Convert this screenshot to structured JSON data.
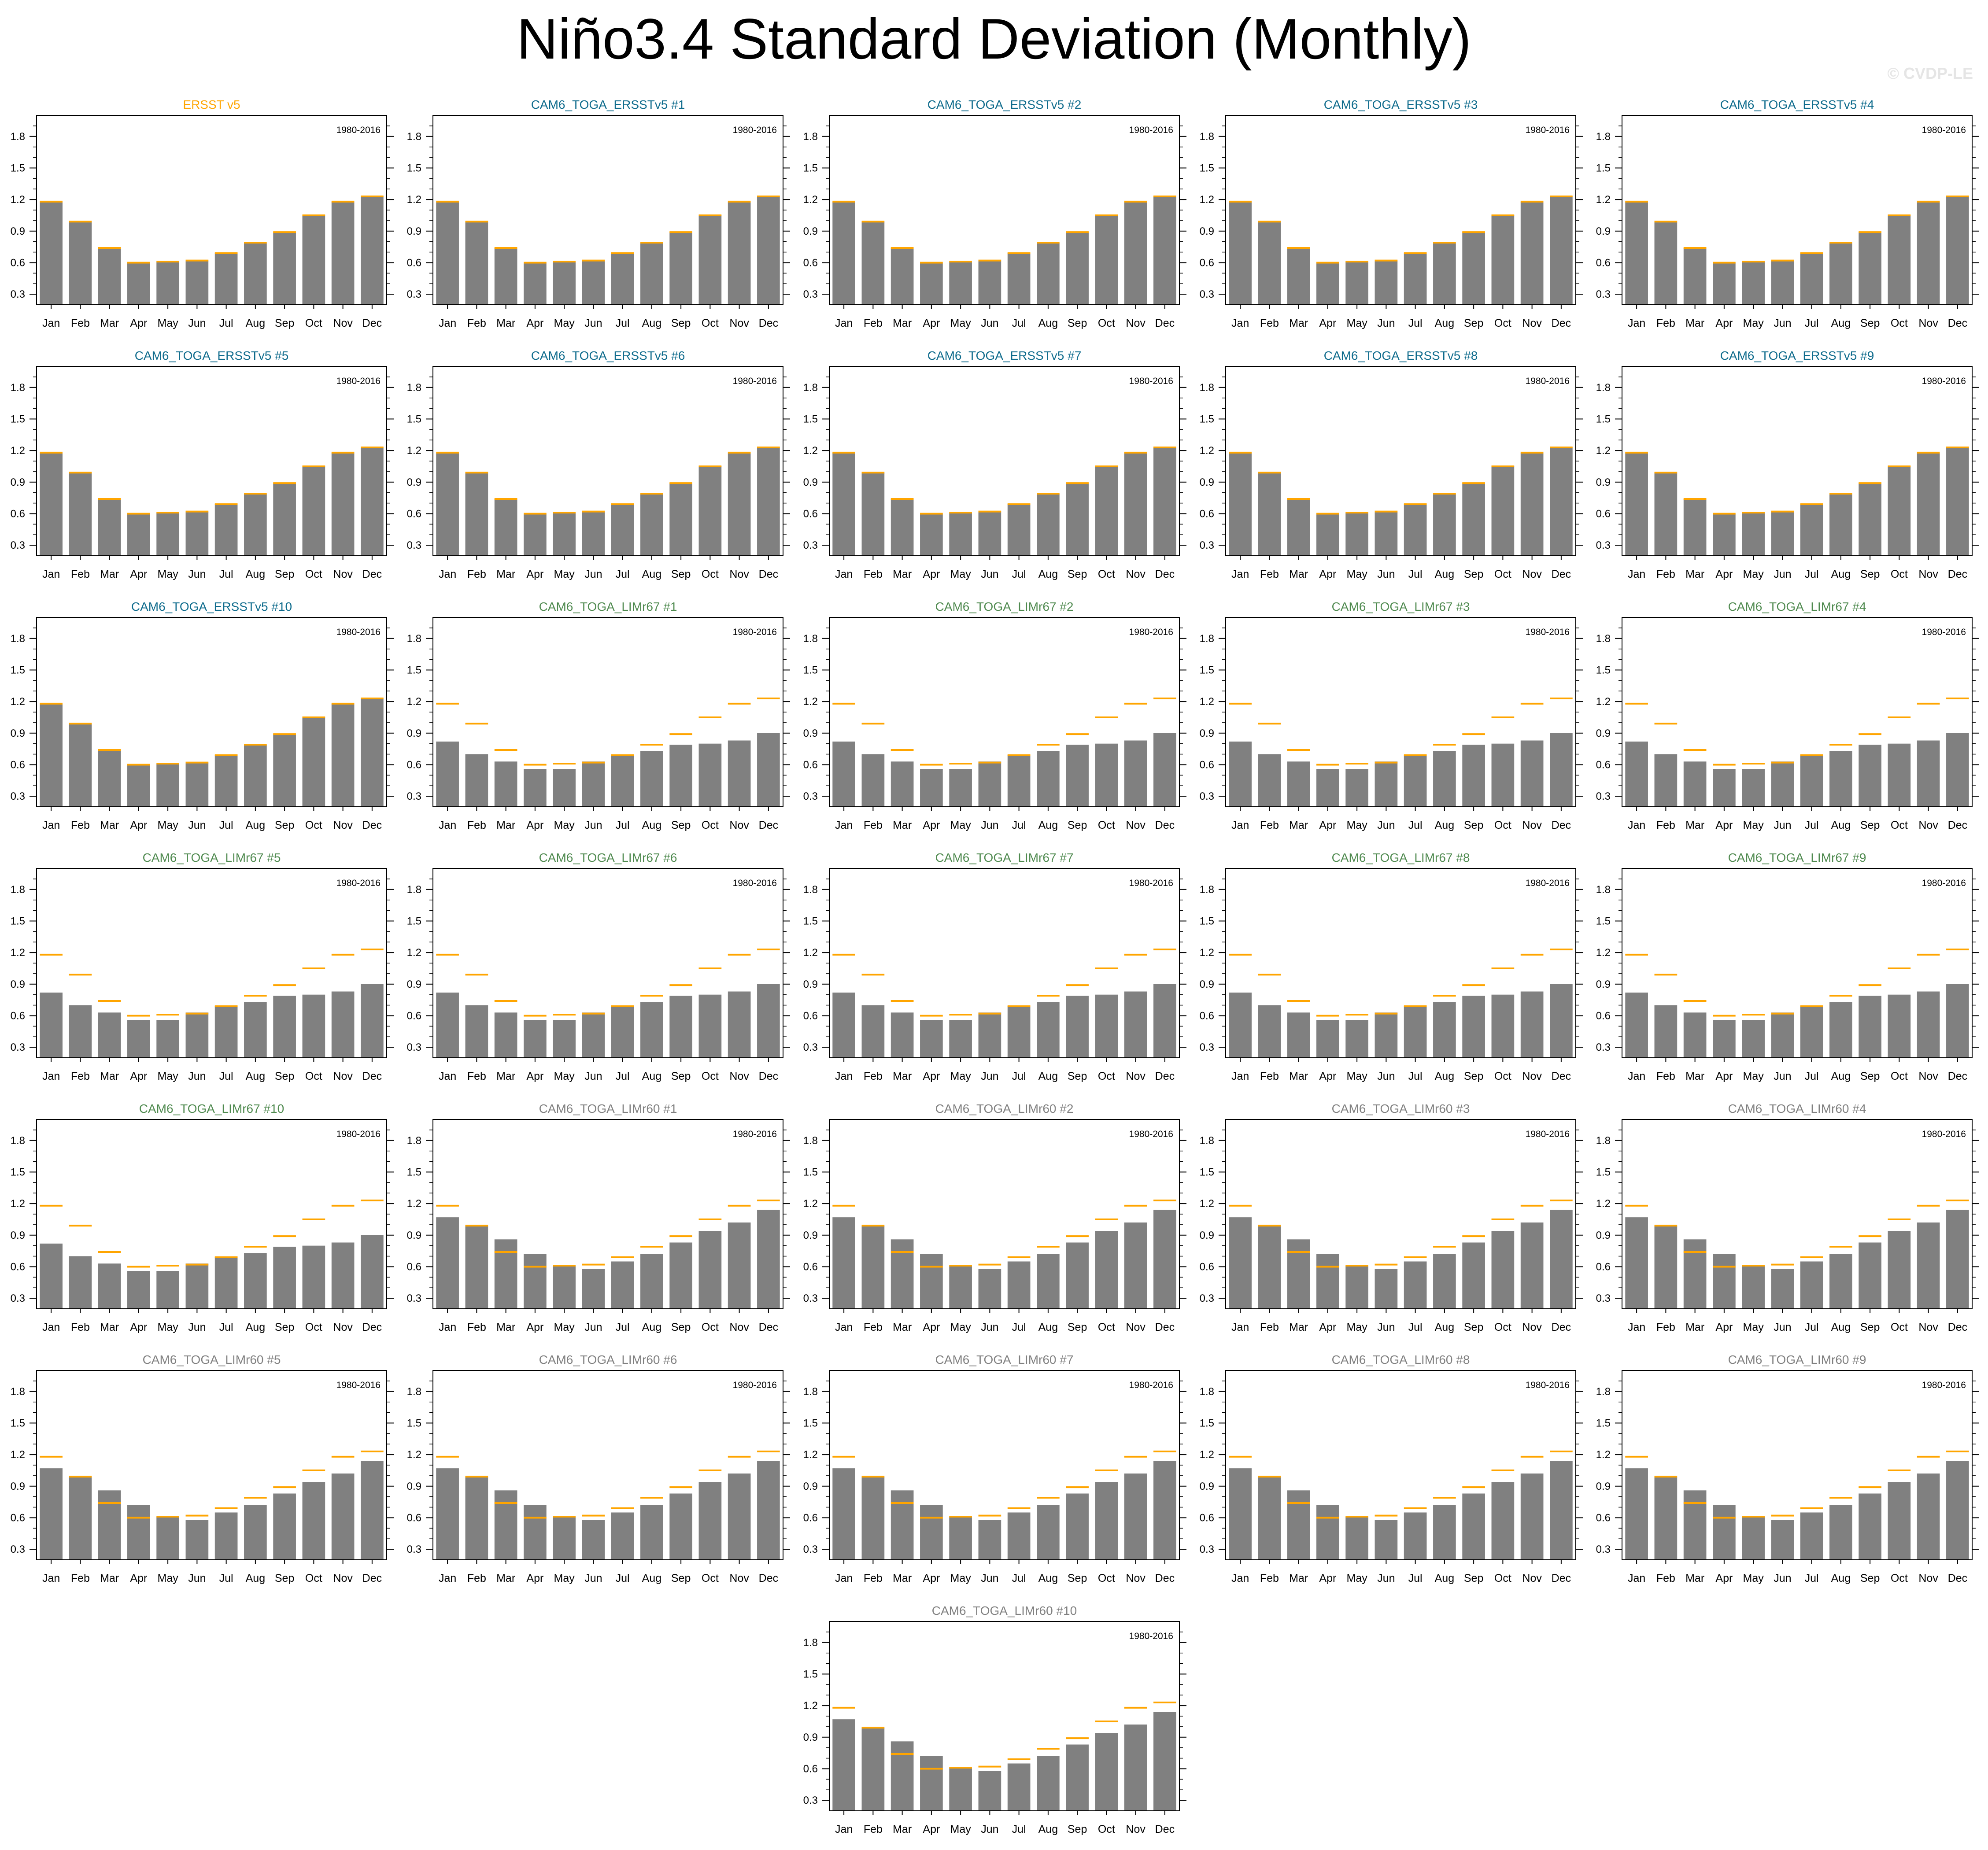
{
  "title": "Niño3.4 Standard Deviation (Monthly)",
  "copyright": "© CVDP-LE",
  "colors": {
    "bar": "#808080",
    "reference": "#ffa500",
    "title_obs": "#ffa500",
    "title_ersst": "#0e6b8c",
    "title_limr67": "#4f8a4f",
    "title_limr60": "#808080"
  },
  "chart_data": {
    "type": "bar",
    "categories": [
      "Jan",
      "Feb",
      "Mar",
      "Apr",
      "May",
      "Jun",
      "Jul",
      "Aug",
      "Sep",
      "Oct",
      "Nov",
      "Dec"
    ],
    "ylim": [
      0.2,
      2.0
    ],
    "yticks": [
      "0.3",
      "0.6",
      "0.9",
      "1.2",
      "1.5",
      "1.8"
    ],
    "period_label": "1980-2016",
    "reference_series": {
      "name": "ERSST v5",
      "values": [
        1.18,
        0.99,
        0.74,
        0.6,
        0.61,
        0.62,
        0.69,
        0.79,
        0.89,
        1.05,
        1.18,
        1.23
      ]
    },
    "series": [
      {
        "name": "ERSST v5",
        "group": "obs",
        "values": [
          1.18,
          0.99,
          0.74,
          0.6,
          0.61,
          0.62,
          0.69,
          0.79,
          0.89,
          1.05,
          1.18,
          1.23
        ]
      },
      {
        "name": "CAM6_TOGA_ERSSTv5 #1",
        "group": "ersst",
        "values": [
          1.18,
          0.99,
          0.74,
          0.6,
          0.61,
          0.62,
          0.69,
          0.79,
          0.89,
          1.05,
          1.18,
          1.23
        ]
      },
      {
        "name": "CAM6_TOGA_ERSSTv5 #2",
        "group": "ersst",
        "values": [
          1.18,
          0.99,
          0.74,
          0.6,
          0.61,
          0.62,
          0.69,
          0.79,
          0.89,
          1.05,
          1.18,
          1.23
        ]
      },
      {
        "name": "CAM6_TOGA_ERSSTv5 #3",
        "group": "ersst",
        "values": [
          1.18,
          0.99,
          0.74,
          0.6,
          0.61,
          0.62,
          0.69,
          0.79,
          0.89,
          1.05,
          1.18,
          1.23
        ]
      },
      {
        "name": "CAM6_TOGA_ERSSTv5 #4",
        "group": "ersst",
        "values": [
          1.18,
          0.99,
          0.74,
          0.6,
          0.61,
          0.62,
          0.69,
          0.79,
          0.89,
          1.05,
          1.18,
          1.23
        ]
      },
      {
        "name": "CAM6_TOGA_ERSSTv5 #5",
        "group": "ersst",
        "values": [
          1.18,
          0.99,
          0.74,
          0.6,
          0.61,
          0.62,
          0.69,
          0.79,
          0.89,
          1.05,
          1.18,
          1.23
        ]
      },
      {
        "name": "CAM6_TOGA_ERSSTv5 #6",
        "group": "ersst",
        "values": [
          1.18,
          0.99,
          0.74,
          0.6,
          0.61,
          0.62,
          0.69,
          0.79,
          0.89,
          1.05,
          1.18,
          1.23
        ]
      },
      {
        "name": "CAM6_TOGA_ERSSTv5 #7",
        "group": "ersst",
        "values": [
          1.18,
          0.99,
          0.74,
          0.6,
          0.61,
          0.62,
          0.69,
          0.79,
          0.89,
          1.05,
          1.18,
          1.23
        ]
      },
      {
        "name": "CAM6_TOGA_ERSSTv5 #8",
        "group": "ersst",
        "values": [
          1.18,
          0.99,
          0.74,
          0.6,
          0.61,
          0.62,
          0.69,
          0.79,
          0.89,
          1.05,
          1.18,
          1.23
        ]
      },
      {
        "name": "CAM6_TOGA_ERSSTv5 #9",
        "group": "ersst",
        "values": [
          1.18,
          0.99,
          0.74,
          0.6,
          0.61,
          0.62,
          0.69,
          0.79,
          0.89,
          1.05,
          1.18,
          1.23
        ]
      },
      {
        "name": "CAM6_TOGA_ERSSTv5 #10",
        "group": "ersst",
        "values": [
          1.18,
          0.99,
          0.74,
          0.6,
          0.61,
          0.62,
          0.69,
          0.79,
          0.89,
          1.05,
          1.18,
          1.23
        ]
      },
      {
        "name": "CAM6_TOGA_LIMr67 #1",
        "group": "limr67",
        "values": [
          0.82,
          0.7,
          0.63,
          0.56,
          0.56,
          0.63,
          0.69,
          0.73,
          0.79,
          0.8,
          0.83,
          0.9
        ]
      },
      {
        "name": "CAM6_TOGA_LIMr67 #2",
        "group": "limr67",
        "values": [
          0.82,
          0.7,
          0.63,
          0.56,
          0.56,
          0.63,
          0.69,
          0.73,
          0.79,
          0.8,
          0.83,
          0.9
        ]
      },
      {
        "name": "CAM6_TOGA_LIMr67 #3",
        "group": "limr67",
        "values": [
          0.82,
          0.7,
          0.63,
          0.56,
          0.56,
          0.63,
          0.69,
          0.73,
          0.79,
          0.8,
          0.83,
          0.9
        ]
      },
      {
        "name": "CAM6_TOGA_LIMr67 #4",
        "group": "limr67",
        "values": [
          0.82,
          0.7,
          0.63,
          0.56,
          0.56,
          0.63,
          0.69,
          0.73,
          0.79,
          0.8,
          0.83,
          0.9
        ]
      },
      {
        "name": "CAM6_TOGA_LIMr67 #5",
        "group": "limr67",
        "values": [
          0.82,
          0.7,
          0.63,
          0.56,
          0.56,
          0.63,
          0.69,
          0.73,
          0.79,
          0.8,
          0.83,
          0.9
        ]
      },
      {
        "name": "CAM6_TOGA_LIMr67 #6",
        "group": "limr67",
        "values": [
          0.82,
          0.7,
          0.63,
          0.56,
          0.56,
          0.63,
          0.69,
          0.73,
          0.79,
          0.8,
          0.83,
          0.9
        ]
      },
      {
        "name": "CAM6_TOGA_LIMr67 #7",
        "group": "limr67",
        "values": [
          0.82,
          0.7,
          0.63,
          0.56,
          0.56,
          0.63,
          0.69,
          0.73,
          0.79,
          0.8,
          0.83,
          0.9
        ]
      },
      {
        "name": "CAM6_TOGA_LIMr67 #8",
        "group": "limr67",
        "values": [
          0.82,
          0.7,
          0.63,
          0.56,
          0.56,
          0.63,
          0.69,
          0.73,
          0.79,
          0.8,
          0.83,
          0.9
        ]
      },
      {
        "name": "CAM6_TOGA_LIMr67 #9",
        "group": "limr67",
        "values": [
          0.82,
          0.7,
          0.63,
          0.56,
          0.56,
          0.63,
          0.69,
          0.73,
          0.79,
          0.8,
          0.83,
          0.9
        ]
      },
      {
        "name": "CAM6_TOGA_LIMr67 #10",
        "group": "limr67",
        "values": [
          0.82,
          0.7,
          0.63,
          0.56,
          0.56,
          0.63,
          0.69,
          0.73,
          0.79,
          0.8,
          0.83,
          0.9
        ]
      },
      {
        "name": "CAM6_TOGA_LIMr60 #1",
        "group": "limr60",
        "values": [
          1.07,
          0.99,
          0.86,
          0.72,
          0.61,
          0.58,
          0.65,
          0.72,
          0.83,
          0.94,
          1.02,
          1.14
        ]
      },
      {
        "name": "CAM6_TOGA_LIMr60 #2",
        "group": "limr60",
        "values": [
          1.07,
          0.99,
          0.86,
          0.72,
          0.61,
          0.58,
          0.65,
          0.72,
          0.83,
          0.94,
          1.02,
          1.14
        ]
      },
      {
        "name": "CAM6_TOGA_LIMr60 #3",
        "group": "limr60",
        "values": [
          1.07,
          0.99,
          0.86,
          0.72,
          0.61,
          0.58,
          0.65,
          0.72,
          0.83,
          0.94,
          1.02,
          1.14
        ]
      },
      {
        "name": "CAM6_TOGA_LIMr60 #4",
        "group": "limr60",
        "values": [
          1.07,
          0.99,
          0.86,
          0.72,
          0.61,
          0.58,
          0.65,
          0.72,
          0.83,
          0.94,
          1.02,
          1.14
        ]
      },
      {
        "name": "CAM6_TOGA_LIMr60 #5",
        "group": "limr60",
        "values": [
          1.07,
          0.99,
          0.86,
          0.72,
          0.61,
          0.58,
          0.65,
          0.72,
          0.83,
          0.94,
          1.02,
          1.14
        ]
      },
      {
        "name": "CAM6_TOGA_LIMr60 #6",
        "group": "limr60",
        "values": [
          1.07,
          0.99,
          0.86,
          0.72,
          0.61,
          0.58,
          0.65,
          0.72,
          0.83,
          0.94,
          1.02,
          1.14
        ]
      },
      {
        "name": "CAM6_TOGA_LIMr60 #7",
        "group": "limr60",
        "values": [
          1.07,
          0.99,
          0.86,
          0.72,
          0.61,
          0.58,
          0.65,
          0.72,
          0.83,
          0.94,
          1.02,
          1.14
        ]
      },
      {
        "name": "CAM6_TOGA_LIMr60 #8",
        "group": "limr60",
        "values": [
          1.07,
          0.99,
          0.86,
          0.72,
          0.61,
          0.58,
          0.65,
          0.72,
          0.83,
          0.94,
          1.02,
          1.14
        ]
      },
      {
        "name": "CAM6_TOGA_LIMr60 #9",
        "group": "limr60",
        "values": [
          1.07,
          0.99,
          0.86,
          0.72,
          0.61,
          0.58,
          0.65,
          0.72,
          0.83,
          0.94,
          1.02,
          1.14
        ]
      },
      {
        "name": "CAM6_TOGA_LIMr60 #10",
        "group": "limr60",
        "values": [
          1.07,
          0.99,
          0.86,
          0.72,
          0.61,
          0.58,
          0.65,
          0.72,
          0.83,
          0.94,
          1.02,
          1.14
        ]
      }
    ]
  }
}
